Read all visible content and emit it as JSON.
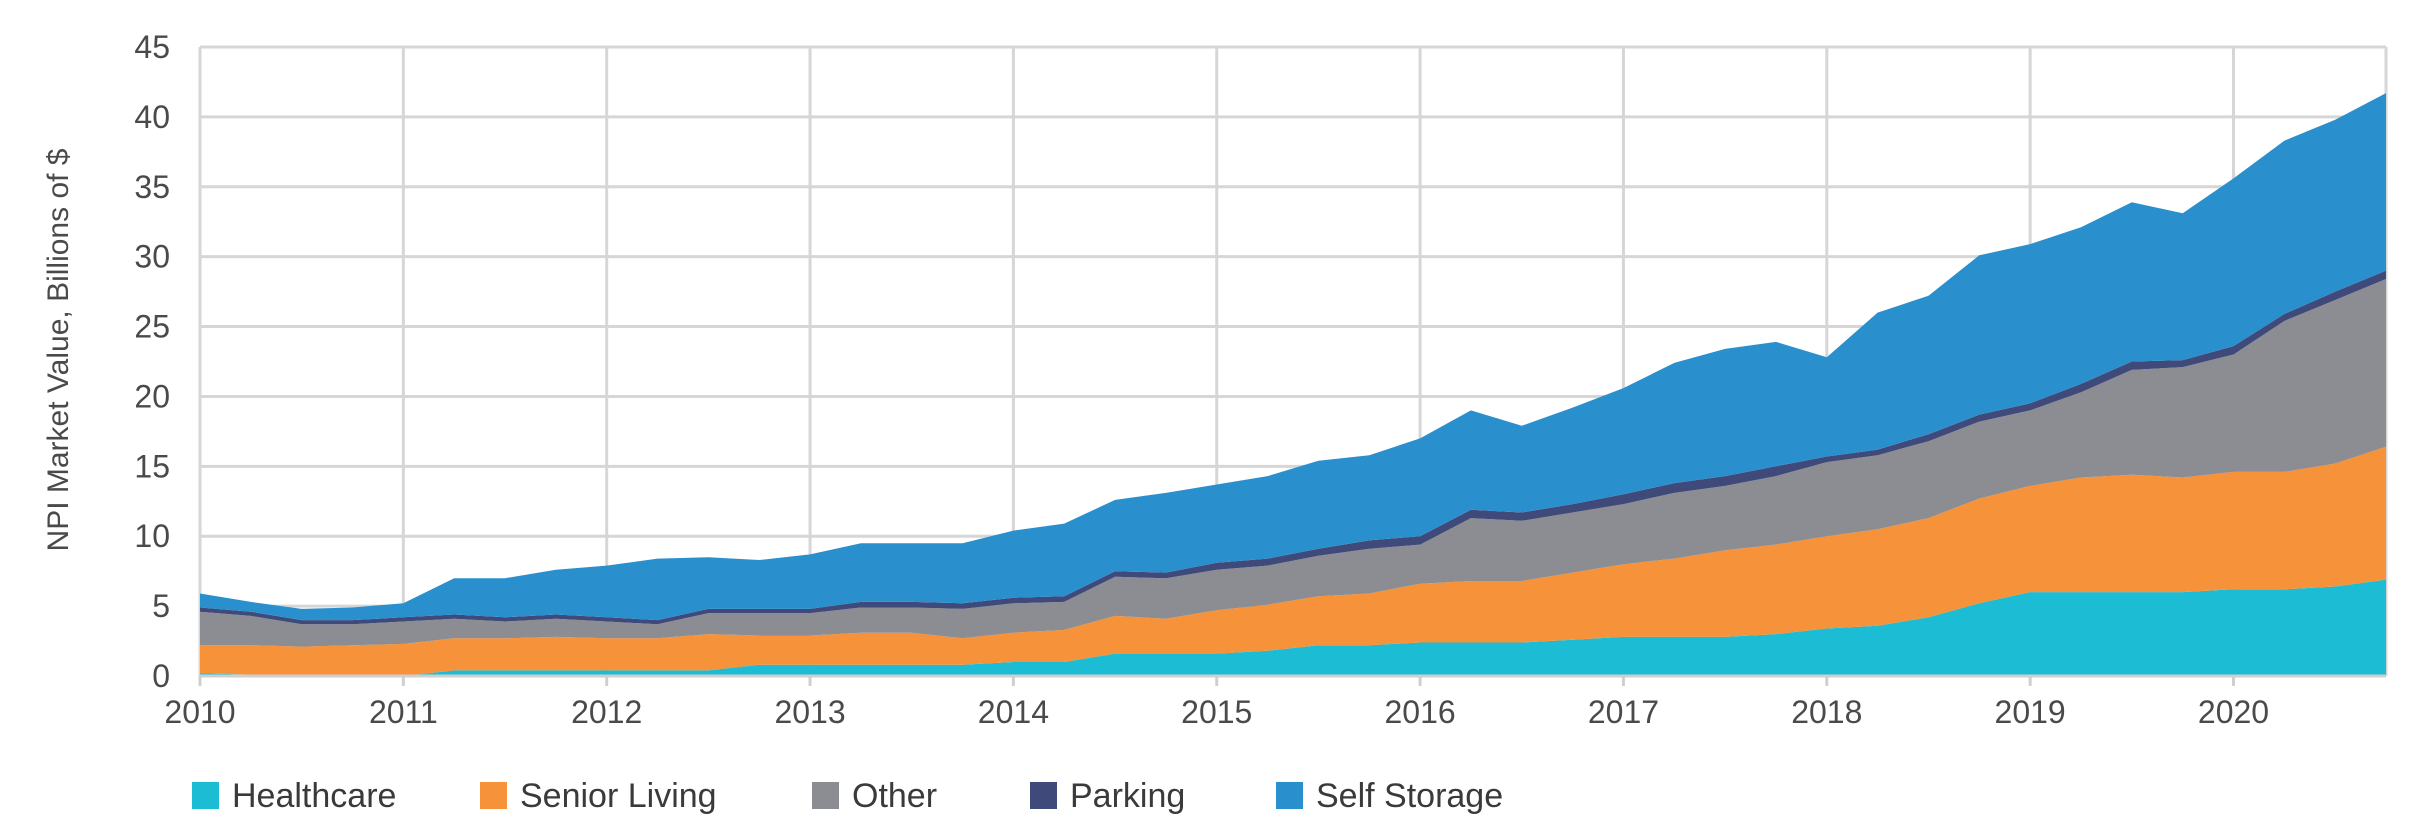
{
  "chart_data": {
    "type": "area",
    "stacked": true,
    "title": "",
    "xlabel": "",
    "ylabel": "NPI Market Value, Billions of $",
    "x": [
      2010.0,
      2010.25,
      2010.5,
      2010.75,
      2011.0,
      2011.25,
      2011.5,
      2011.75,
      2012.0,
      2012.25,
      2012.5,
      2012.75,
      2013.0,
      2013.25,
      2013.5,
      2013.75,
      2014.0,
      2014.25,
      2014.5,
      2014.75,
      2015.0,
      2015.25,
      2015.5,
      2015.75,
      2016.0,
      2016.25,
      2016.5,
      2016.75,
      2017.0,
      2017.25,
      2017.5,
      2017.75,
      2018.0,
      2018.25,
      2018.5,
      2018.75,
      2019.0,
      2019.25,
      2019.5,
      2019.75,
      2020.0,
      2020.25,
      2020.5,
      2020.75
    ],
    "xlim": [
      2010,
      2020.75
    ],
    "ylim": [
      0,
      45
    ],
    "x_ticks": [
      "2010",
      "2011",
      "2012",
      "2013",
      "2014",
      "2015",
      "2016",
      "2017",
      "2018",
      "2019",
      "2020"
    ],
    "y_ticks": [
      "0",
      "5",
      "10",
      "15",
      "20",
      "25",
      "30",
      "35",
      "40",
      "45"
    ],
    "grid": true,
    "legend_position": "bottom",
    "series": [
      {
        "name": "Healthcare",
        "color": "#1bbcd4",
        "values": [
          0.2,
          0.1,
          0.0,
          0.1,
          0.0,
          0.4,
          0.4,
          0.4,
          0.4,
          0.4,
          0.4,
          0.8,
          0.8,
          0.8,
          0.8,
          0.8,
          1.0,
          1.0,
          1.6,
          1.6,
          1.6,
          1.8,
          2.2,
          2.2,
          2.4,
          2.4,
          2.4,
          2.6,
          2.8,
          2.8,
          2.8,
          3.0,
          3.4,
          3.6,
          4.2,
          5.2,
          6.0,
          6.0,
          6.0,
          6.0,
          6.2,
          6.2,
          6.4,
          6.9
        ]
      },
      {
        "name": "Senior Living",
        "color": "#f5923a",
        "values": [
          2.0,
          2.1,
          2.1,
          2.1,
          2.3,
          2.3,
          2.3,
          2.4,
          2.3,
          2.3,
          2.6,
          2.1,
          2.1,
          2.3,
          2.3,
          1.9,
          2.1,
          2.3,
          2.7,
          2.5,
          3.1,
          3.3,
          3.5,
          3.7,
          4.2,
          4.4,
          4.4,
          4.8,
          5.2,
          5.6,
          6.2,
          6.4,
          6.6,
          6.9,
          7.1,
          7.5,
          7.6,
          8.2,
          8.4,
          8.2,
          8.4,
          8.4,
          8.8,
          9.5
        ]
      },
      {
        "name": "Other",
        "color": "#8c8d92",
        "values": [
          2.4,
          2.1,
          1.6,
          1.5,
          1.6,
          1.4,
          1.2,
          1.3,
          1.2,
          1.0,
          1.5,
          1.6,
          1.6,
          1.8,
          1.8,
          2.1,
          2.1,
          2.0,
          2.8,
          2.9,
          2.9,
          2.8,
          2.9,
          3.2,
          2.8,
          4.5,
          4.3,
          4.3,
          4.3,
          4.7,
          4.6,
          4.9,
          5.3,
          5.3,
          5.5,
          5.5,
          5.4,
          6.1,
          7.5,
          7.9,
          8.4,
          10.8,
          11.7,
          12.0
        ]
      },
      {
        "name": "Parking",
        "color": "#3f4a7a",
        "values": [
          0.3,
          0.3,
          0.3,
          0.3,
          0.3,
          0.3,
          0.3,
          0.3,
          0.3,
          0.3,
          0.3,
          0.3,
          0.3,
          0.4,
          0.4,
          0.4,
          0.4,
          0.4,
          0.4,
          0.4,
          0.5,
          0.5,
          0.5,
          0.6,
          0.6,
          0.6,
          0.6,
          0.6,
          0.7,
          0.7,
          0.7,
          0.7,
          0.4,
          0.4,
          0.5,
          0.5,
          0.5,
          0.6,
          0.6,
          0.5,
          0.6,
          0.5,
          0.6,
          0.6
        ]
      },
      {
        "name": "Self Storage",
        "color": "#2a8fcd",
        "values": [
          1.0,
          0.7,
          0.8,
          0.9,
          1.0,
          2.6,
          2.8,
          3.2,
          3.7,
          4.4,
          3.7,
          3.5,
          3.9,
          4.2,
          4.2,
          4.3,
          4.8,
          5.2,
          5.1,
          5.7,
          5.6,
          5.9,
          6.3,
          6.1,
          7.0,
          7.1,
          6.2,
          6.9,
          7.6,
          8.6,
          9.1,
          8.9,
          7.1,
          9.8,
          9.9,
          11.4,
          11.4,
          11.2,
          11.4,
          10.5,
          12.0,
          12.4,
          12.3,
          12.7
        ]
      }
    ]
  }
}
